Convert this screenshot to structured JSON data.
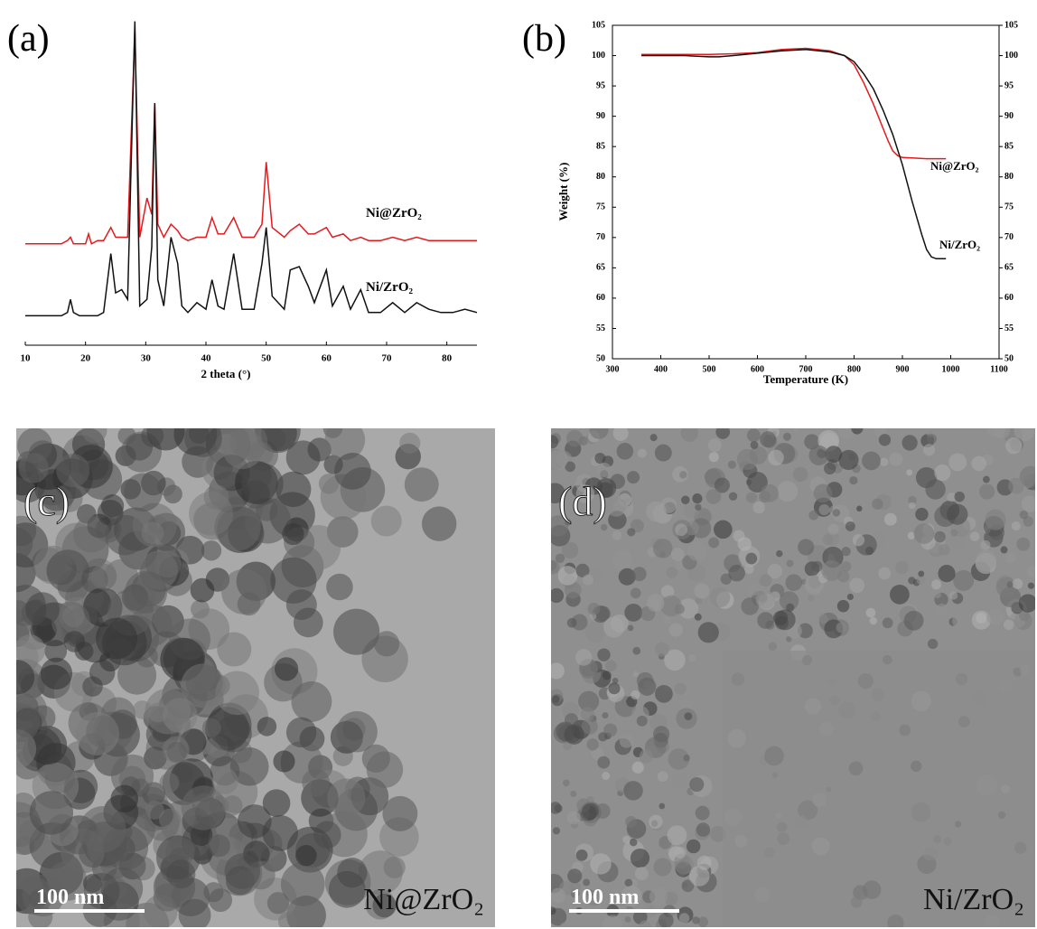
{
  "chart_data": [
    {
      "type": "line",
      "title": "(a)",
      "x_label": "2 theta (°)",
      "xlim": [
        10,
        85
      ],
      "xticks": [
        10,
        20,
        30,
        40,
        50,
        60,
        70,
        80
      ],
      "ylim": [
        0,
        100
      ],
      "series": [
        {
          "name": "Ni@ZrO₂",
          "color": "#e41a1c",
          "x": [
            10,
            12,
            14,
            16,
            17,
            17.5,
            18,
            19,
            20,
            20.5,
            21,
            22,
            23,
            24.2,
            25,
            26,
            27,
            28.2,
            29,
            30.2,
            31,
            31.5,
            32,
            33,
            34.2,
            35.3,
            36,
            37,
            38.5,
            40,
            41,
            42,
            43,
            44.6,
            46,
            48,
            49.3,
            50,
            51,
            53,
            54,
            55.5,
            57,
            58,
            60,
            61,
            62.8,
            64,
            65.7,
            67,
            69,
            71,
            73,
            75,
            77,
            79,
            81,
            83,
            85
          ],
          "values": [
            31,
            31,
            31,
            31,
            32,
            33,
            31,
            31,
            31,
            34,
            31,
            32,
            32,
            36,
            33,
            33,
            33,
            96,
            33,
            45,
            40,
            74,
            37,
            33,
            37,
            35,
            33,
            32,
            33,
            33,
            39,
            34,
            34,
            39,
            33,
            33,
            37,
            56,
            36,
            33,
            35,
            37,
            34,
            34,
            36,
            33,
            34,
            32,
            33,
            32,
            32,
            33,
            32,
            33,
            32,
            32,
            32,
            32,
            32
          ]
        },
        {
          "name": "Ni/ZrO₂",
          "color": "#111111",
          "x": [
            10,
            12,
            14,
            16,
            17,
            17.5,
            18,
            19,
            20,
            20.5,
            21,
            22,
            23,
            24.2,
            25,
            26,
            27,
            28.2,
            29,
            30.2,
            31,
            31.5,
            32,
            33,
            34.2,
            35.3,
            36,
            37,
            38.5,
            40,
            41,
            42,
            43,
            44.6,
            46,
            48,
            49.3,
            50,
            51,
            53,
            54,
            55.5,
            57,
            58,
            60,
            61,
            62.8,
            64,
            65.7,
            67,
            69,
            71,
            73,
            75,
            77,
            79,
            81,
            83,
            85
          ],
          "values": [
            9,
            9,
            9,
            9,
            10,
            14,
            10,
            9,
            9,
            9,
            9,
            9,
            10,
            28,
            16,
            17,
            14,
            99,
            12,
            14,
            30,
            74,
            20,
            12,
            33,
            25,
            12,
            10,
            13,
            11,
            20,
            12,
            11,
            28,
            11,
            11,
            25,
            36,
            15,
            11,
            23,
            24,
            18,
            13,
            23,
            12,
            18,
            11,
            17,
            10,
            10,
            13,
            10,
            13,
            11,
            10,
            10,
            11,
            10
          ]
        }
      ]
    },
    {
      "type": "line",
      "title": "(b)",
      "x_label": "Temperature (K)",
      "y_label": "Weight (%)",
      "xlim": [
        300,
        1100
      ],
      "xticks": [
        300,
        400,
        500,
        600,
        700,
        800,
        900,
        1000,
        1100
      ],
      "ylim": [
        50,
        105
      ],
      "yticks": [
        50,
        55,
        60,
        65,
        70,
        75,
        80,
        85,
        90,
        95,
        100,
        105
      ],
      "y2lim": [
        50,
        105
      ],
      "y2ticks": [
        50,
        55,
        60,
        65,
        70,
        75,
        80,
        85,
        90,
        95,
        100,
        105
      ],
      "series": [
        {
          "name": "Ni@ZrO₂",
          "color": "#e41a1c",
          "x": [
            360,
            400,
            450,
            500,
            550,
            600,
            650,
            700,
            750,
            780,
            800,
            820,
            840,
            860,
            870,
            880,
            890,
            900,
            950,
            990
          ],
          "values": [
            100.2,
            100.2,
            100.2,
            100.2,
            100.3,
            100.5,
            101,
            101.2,
            100.8,
            100,
            98.5,
            95.5,
            92,
            88,
            86,
            84.3,
            83.5,
            83.2,
            83,
            83
          ]
        },
        {
          "name": "Ni/ZrO₂",
          "color": "#111111",
          "x": [
            360,
            400,
            450,
            500,
            520,
            550,
            600,
            650,
            700,
            750,
            780,
            800,
            820,
            840,
            860,
            880,
            900,
            920,
            940,
            950,
            960,
            970,
            990
          ],
          "values": [
            100,
            100,
            100,
            99.8,
            99.8,
            100,
            100.4,
            100.8,
            101,
            100.6,
            100,
            99,
            97,
            94.5,
            91,
            87,
            82,
            76,
            70.5,
            68,
            66.8,
            66.5,
            66.5
          ]
        }
      ]
    }
  ],
  "images": [
    {
      "label": "(c)",
      "scale_bar": "100 nm",
      "sample": "Ni@ZrO₂"
    },
    {
      "label": "(d)",
      "scale_bar": "100 nm",
      "sample": "Ni/ZrO₂"
    }
  ]
}
